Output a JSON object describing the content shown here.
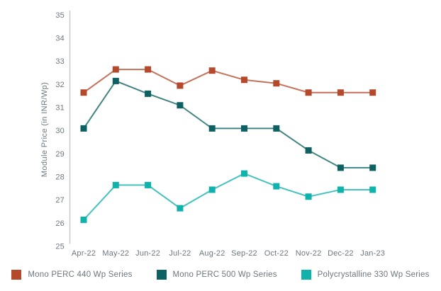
{
  "chart_data": {
    "type": "line",
    "title": "",
    "xlabel": "",
    "ylabel": "Module Price (in INR/Wp)",
    "ylim": [
      25,
      35
    ],
    "y_ticks": [
      35,
      34,
      33,
      32,
      31,
      30,
      29,
      28,
      27,
      26,
      25
    ],
    "grid": false,
    "legend_position": "bottom",
    "marker": "square",
    "axis_color": "#c9ccd0",
    "text_color": "#6d7780",
    "categories": [
      "Apr-22",
      "May-22",
      "Jun-22",
      "Jul-22",
      "Aug-22",
      "Sep-22",
      "Oct-22",
      "Nov-22",
      "Dec-22",
      "Jan-23"
    ],
    "series": [
      {
        "name": "Mono PERC 440 Wp Series",
        "color": "#b5492b",
        "values": [
          31.65,
          32.65,
          32.65,
          31.95,
          32.6,
          32.2,
          32.05,
          31.65,
          31.65,
          31.65
        ]
      },
      {
        "name": "Mono PERC 500 Wp Series",
        "color": "#0e6163",
        "values": [
          30.1,
          32.15,
          31.6,
          31.1,
          30.1,
          30.1,
          30.1,
          29.15,
          28.4,
          28.4
        ]
      },
      {
        "name": "Polycrystalline 330 Wp Series",
        "color": "#10b2ac",
        "values": [
          26.15,
          27.65,
          27.65,
          26.65,
          27.45,
          28.15,
          27.6,
          27.15,
          27.45,
          27.45
        ]
      }
    ]
  }
}
